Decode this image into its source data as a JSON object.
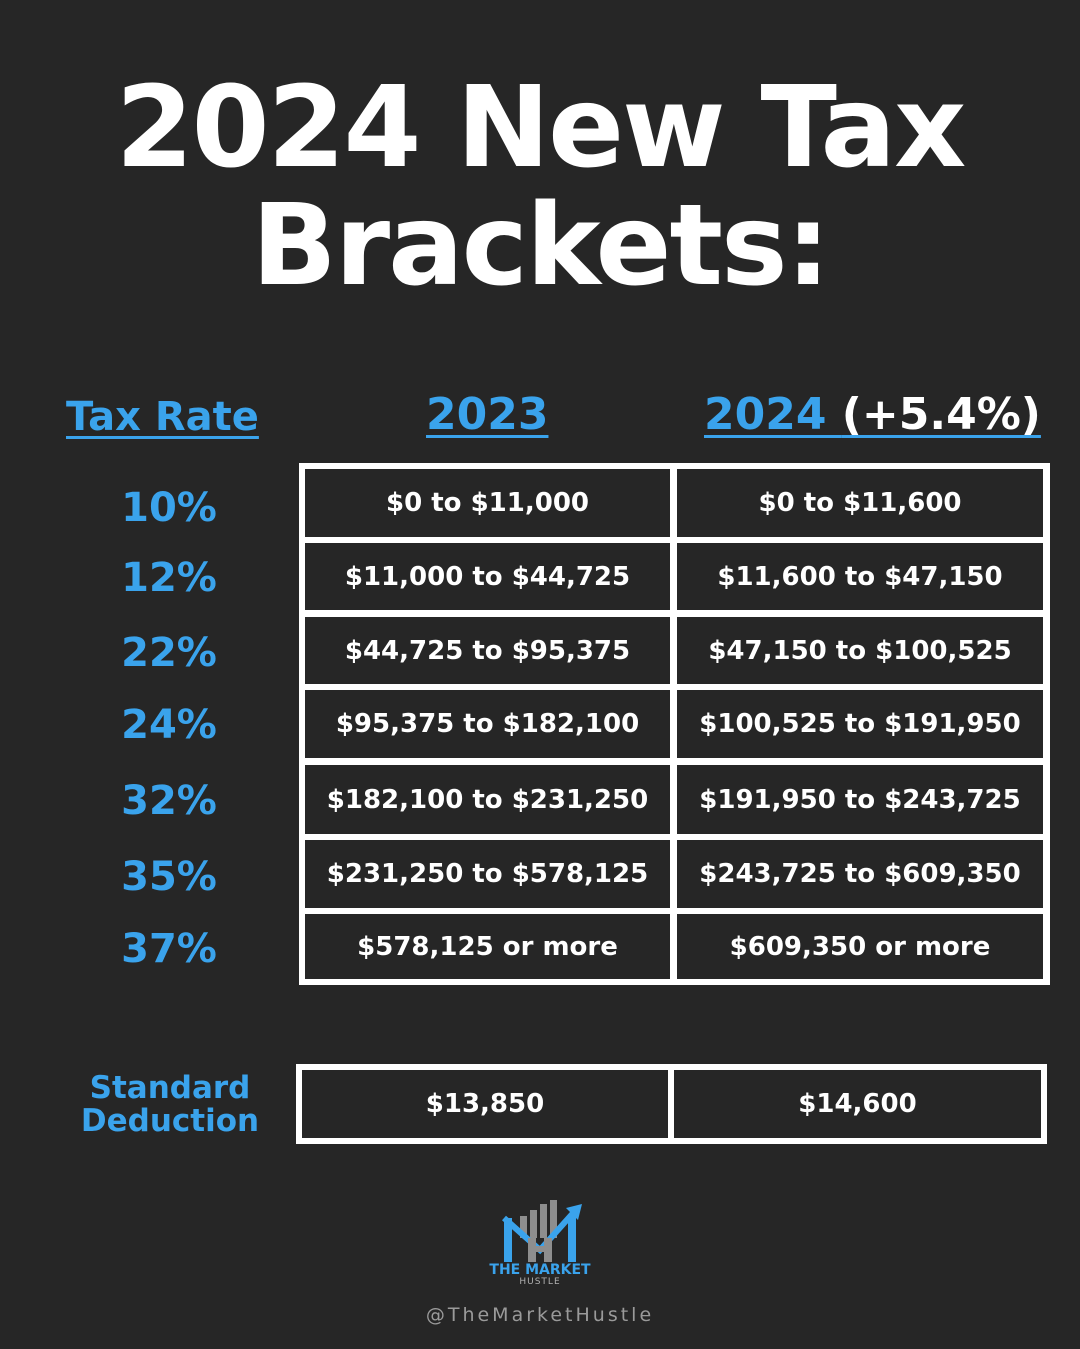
{
  "title": {
    "line1": "2024 New Tax",
    "line2": "Brackets:"
  },
  "headers": {
    "rate": "Tax Rate",
    "year_2023": "2023",
    "year_2024": "2024 ",
    "change": "(+5.4%)"
  },
  "brackets": [
    {
      "rate": "10%",
      "y2023": "$0 to $11,000",
      "y2024": "$0 to $11,600"
    },
    {
      "rate": "12%",
      "y2023": "$11,000 to $44,725",
      "y2024": "$11,600 to $47,150"
    },
    {
      "rate": "22%",
      "y2023": "$44,725 to $95,375",
      "y2024": "$47,150 to $100,525"
    },
    {
      "rate": "24%",
      "y2023": "$95,375 to $182,100",
      "y2024": "$100,525 to $191,950"
    },
    {
      "rate": "32%",
      "y2023": "$182,100 to $231,250",
      "y2024": "$191,950 to $243,725"
    },
    {
      "rate": "35%",
      "y2023": "$231,250 to $578,125",
      "y2024": "$243,725 to $609,350"
    },
    {
      "rate": "37%",
      "y2023": "$578,125 or more",
      "y2024": "$609,350 or more"
    }
  ],
  "deduction": {
    "label_line1": "Standard",
    "label_line2": "Deduction",
    "y2023": "$13,850",
    "y2024": "$14,600"
  },
  "logo": {
    "name": "THE MARKET",
    "sub": "HUSTLE"
  },
  "handle": "@TheMarketHustle",
  "colors": {
    "background": "#262626",
    "accent": "#3aa3ec",
    "text": "#ffffff"
  }
}
